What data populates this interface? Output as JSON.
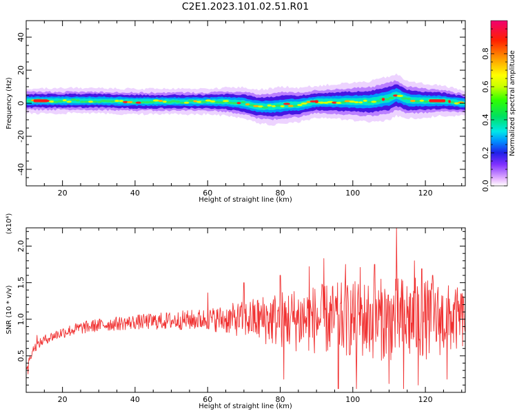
{
  "title": "C2E1.2023.101.02.51.R01",
  "colors": {
    "snr_line": "#f03030",
    "frame": "#000000"
  },
  "chart_data": [
    {
      "type": "heatmap",
      "xlabel": "Height of straight line (km)",
      "ylabel": "Frequency (Hz)",
      "xlim": [
        10,
        131
      ],
      "ylim": [
        -50,
        50
      ],
      "x_ticks": [
        20,
        40,
        60,
        80,
        100,
        120
      ],
      "y_ticks": [
        -40,
        -20,
        0,
        20,
        40
      ],
      "x_tick_labels": [
        "20",
        "40",
        "60",
        "80",
        "100",
        "120"
      ],
      "y_tick_labels": [
        "-40",
        "-20",
        "0",
        "20",
        "40"
      ],
      "colorbar": {
        "label": "Normalized spectral amplitude",
        "range": [
          0,
          1
        ],
        "ticks": [
          0.0,
          0.2,
          0.4,
          0.6,
          0.8
        ],
        "tick_labels": [
          "0.0",
          "0.2",
          "0.4",
          "0.6",
          "0.8"
        ],
        "colormap": "rainbow"
      },
      "ridge_center_hz": [
        [
          10,
          1.5
        ],
        [
          20,
          1.5
        ],
        [
          30,
          1.5
        ],
        [
          40,
          1
        ],
        [
          50,
          1
        ],
        [
          60,
          1
        ],
        [
          65,
          1
        ],
        [
          70,
          0
        ],
        [
          74,
          -2
        ],
        [
          78,
          -2
        ],
        [
          82,
          -1
        ],
        [
          85,
          -1
        ],
        [
          90,
          1
        ],
        [
          95,
          1
        ],
        [
          100,
          1
        ],
        [
          105,
          1
        ],
        [
          110,
          3
        ],
        [
          112,
          5
        ],
        [
          115,
          2
        ],
        [
          120,
          1.5
        ],
        [
          125,
          1.5
        ],
        [
          131,
          0
        ]
      ],
      "ridge_halfwidth_hz": [
        [
          10,
          4
        ],
        [
          60,
          4
        ],
        [
          70,
          5
        ],
        [
          80,
          6
        ],
        [
          90,
          5
        ],
        [
          100,
          6
        ],
        [
          110,
          7
        ],
        [
          115,
          6
        ],
        [
          131,
          4
        ]
      ]
    },
    {
      "type": "line",
      "xlabel": "Height of straight line (km)",
      "ylabel": "SNR (10 * v/v)",
      "y_exponent_label": "(x10⁴)",
      "xlim": [
        10,
        131
      ],
      "ylim": [
        0,
        2.25
      ],
      "x_ticks": [
        20,
        40,
        60,
        80,
        100,
        120
      ],
      "y_ticks": [
        0.5,
        1.0,
        1.5,
        2.0
      ],
      "x_tick_labels": [
        "20",
        "40",
        "60",
        "80",
        "100",
        "120"
      ],
      "y_tick_labels": [
        "0.5",
        "1.0",
        "1.5",
        "2.0"
      ],
      "series": [
        {
          "color": "#f03030",
          "trend": [
            [
              10,
              0.33
            ],
            [
              12,
              0.6
            ],
            [
              15,
              0.72
            ],
            [
              20,
              0.82
            ],
            [
              25,
              0.88
            ],
            [
              30,
              0.92
            ],
            [
              40,
              0.96
            ],
            [
              50,
              0.98
            ],
            [
              60,
              1.0
            ],
            [
              70,
              1.0
            ],
            [
              80,
              1.0
            ],
            [
              90,
              1.0
            ],
            [
              100,
              1.0
            ],
            [
              110,
              1.0
            ],
            [
              120,
              1.0
            ],
            [
              131,
              1.0
            ]
          ],
          "amplitude": [
            [
              10,
              0.05
            ],
            [
              20,
              0.08
            ],
            [
              40,
              0.1
            ],
            [
              60,
              0.15
            ],
            [
              70,
              0.25
            ],
            [
              76,
              0.35
            ],
            [
              85,
              0.45
            ],
            [
              95,
              0.5
            ],
            [
              105,
              0.55
            ],
            [
              115,
              0.6
            ],
            [
              125,
              0.5
            ],
            [
              131,
              0.4
            ]
          ],
          "peaks": [
            [
              13,
              0.78
            ],
            [
              60,
              1.36
            ],
            [
              70,
              1.5
            ],
            [
              80,
              1.6
            ],
            [
              88,
              1.72
            ],
            [
              92,
              1.83
            ],
            [
              98,
              1.75
            ],
            [
              102,
              1.71
            ],
            [
              106,
              1.75
            ],
            [
              112,
              2.25
            ],
            [
              117,
              1.8
            ],
            [
              119,
              1.69
            ],
            [
              122,
              1.6
            ],
            [
              130,
              1.33
            ]
          ],
          "troughs": [
            [
              10.5,
              0.25
            ],
            [
              81,
              0.18
            ],
            [
              96,
              0.05
            ],
            [
              98,
              0.12
            ],
            [
              101,
              0.05
            ],
            [
              110,
              0.12
            ],
            [
              114,
              0.05
            ],
            [
              117,
              0.03
            ],
            [
              118,
              0.1
            ],
            [
              126,
              0.18
            ]
          ]
        }
      ]
    }
  ]
}
